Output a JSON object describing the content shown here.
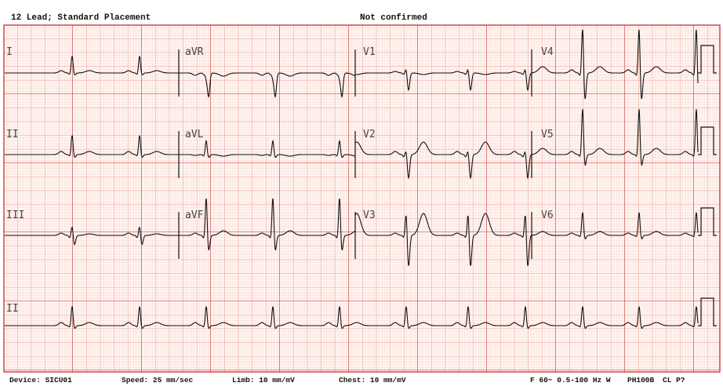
{
  "header": {
    "title": "12 Lead; Standard Placement",
    "status": "Not confirmed"
  },
  "leads": {
    "row1": [
      "I",
      "aVR",
      "V1",
      "V4"
    ],
    "row2": [
      "II",
      "aVL",
      "V2",
      "V5"
    ],
    "row3": [
      "III",
      "aVF",
      "V3",
      "V6"
    ],
    "row4": [
      "II"
    ]
  },
  "footer": {
    "device": "Device: SICU01",
    "speed": "Speed: 25 mm/sec",
    "limb": "Limb: 10 mm/mV",
    "chest": "Chest: 10 mm/mV",
    "filter": "F 60~ 0.5-100 Hz W",
    "model": "PH100B",
    "code": "CL P?"
  },
  "colors": {
    "grid_minor": "#f6c3b8",
    "grid_medium": "#ee8a78",
    "grid_major": "#c41a1a",
    "trace": "#111111"
  }
}
